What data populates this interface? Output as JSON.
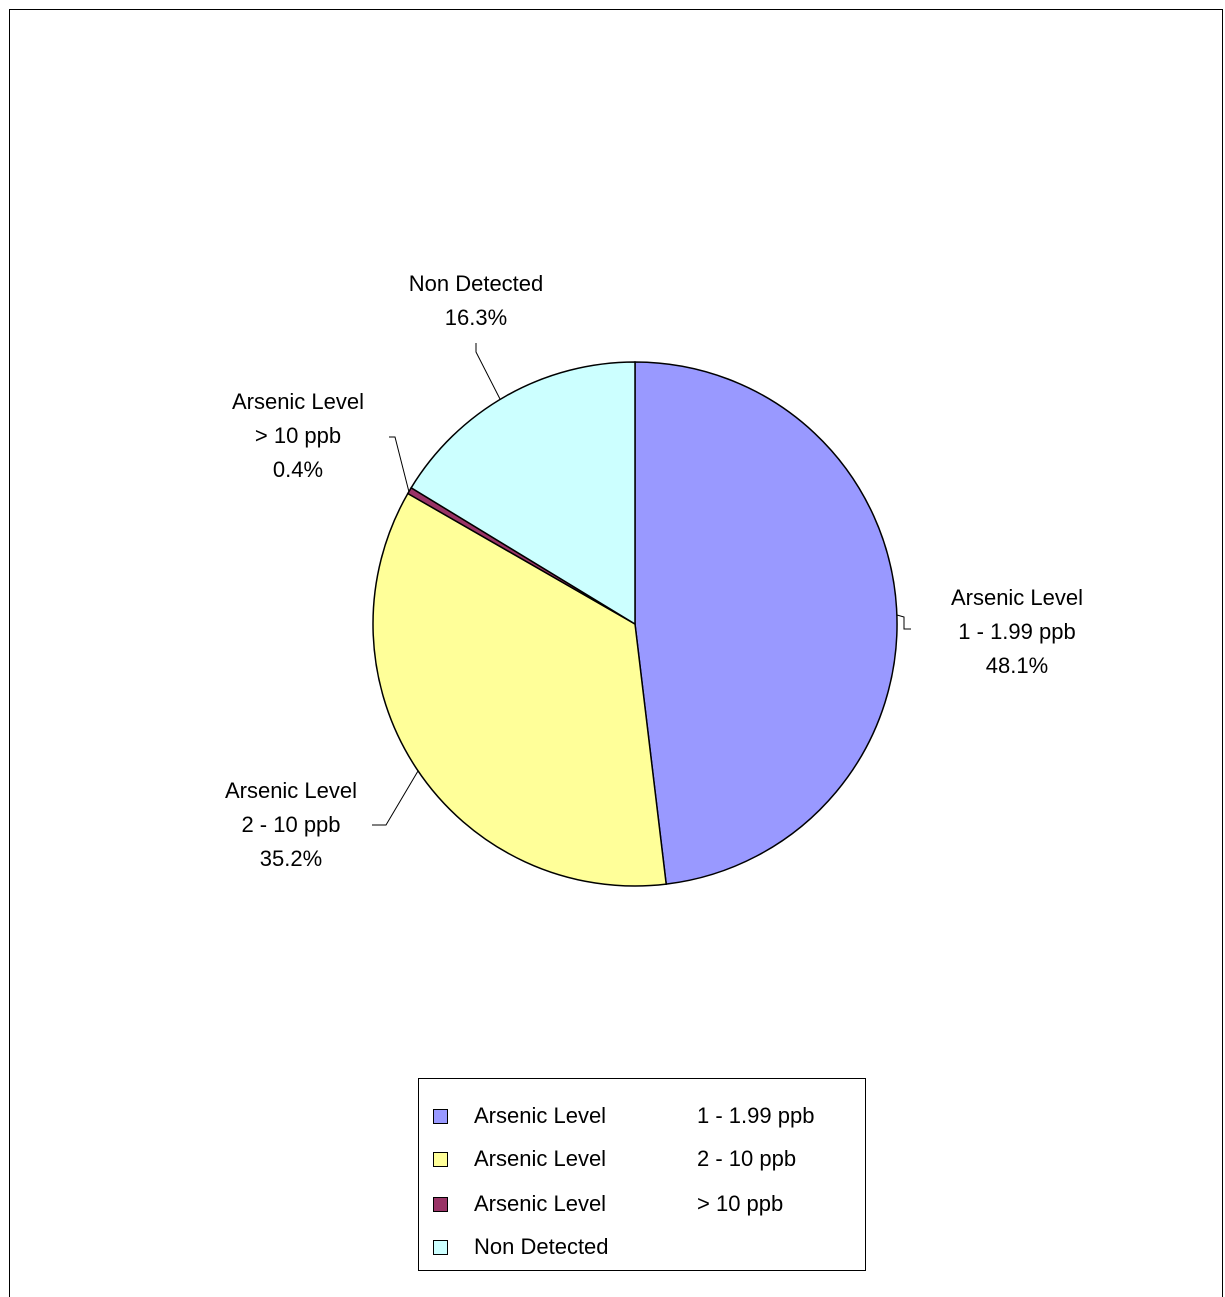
{
  "chart_data": {
    "type": "pie",
    "title": "",
    "start_angle": "12 o'clock, clockwise",
    "slices": [
      {
        "label_line1": "Arsenic Level",
        "label_line2": "1 - 1.99 ppb",
        "percent_label": "48.1%",
        "value": 48.1,
        "color": "#9999FF"
      },
      {
        "label_line1": "Arsenic Level",
        "label_line2": "2 - 10 ppb",
        "percent_label": "35.2%",
        "value": 35.2,
        "color": "#FFFF99"
      },
      {
        "label_line1": "Arsenic Level",
        "label_line2": "> 10 ppb",
        "percent_label": "0.4%",
        "value": 0.4,
        "color": "#993366"
      },
      {
        "label_line1": "Non Detected",
        "label_line2": "",
        "percent_label": "16.3%",
        "value": 16.3,
        "color": "#CCFFFF"
      }
    ],
    "legend": {
      "position": "bottom",
      "entries": [
        {
          "name": "Arsenic Level",
          "range": "1 - 1.99 ppb",
          "color": "#9999FF"
        },
        {
          "name": "Arsenic Level",
          "range": "2 - 10 ppb",
          "color": "#FFFF99"
        },
        {
          "name": "Arsenic Level",
          "range": "> 10 ppb",
          "color": "#993366"
        },
        {
          "name": "Non Detected",
          "range": "",
          "color": "#CCFFFF"
        }
      ]
    }
  }
}
